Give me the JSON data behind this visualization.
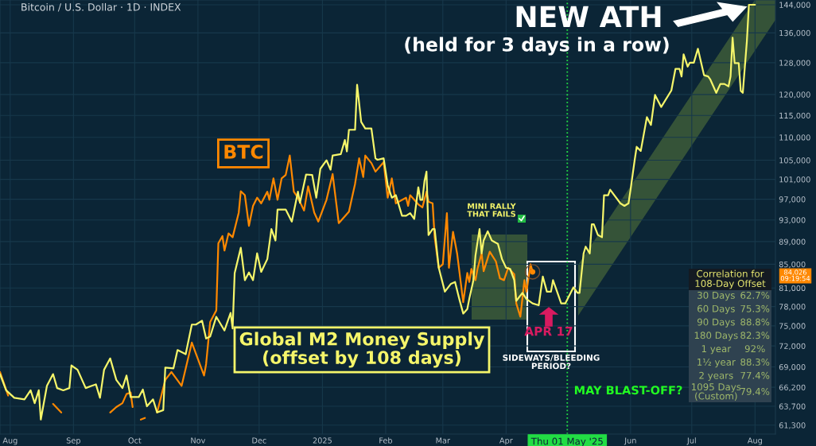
{
  "chart_data": [
    {
      "type": "line",
      "title": "Bitcoin / U.S. Dollar · 1D · INDEX",
      "log": "y",
      "grid": true,
      "xlim": [
        "2024-07-27",
        "2025-08-11"
      ],
      "xticks": [
        {
          "value": "2024-08-01",
          "label": "Aug"
        },
        {
          "value": "2024-09-01",
          "label": "Sep"
        },
        {
          "value": "2024-10-01",
          "label": "Oct"
        },
        {
          "value": "2024-11-01",
          "label": "Nov"
        },
        {
          "value": "2024-12-01",
          "label": "Dec"
        },
        {
          "value": "2025-01-01",
          "label": "2025"
        },
        {
          "value": "2025-02-01",
          "label": "Feb"
        },
        {
          "value": "2025-03-01",
          "label": "Mar"
        },
        {
          "value": "2025-04-01",
          "label": "Apr"
        },
        {
          "value": "2025-06-01",
          "label": "Jun"
        },
        {
          "value": "2025-07-01",
          "label": "Jul"
        },
        {
          "value": "2025-08-01",
          "label": "Aug"
        }
      ],
      "ylim": [
        60200,
        145400
      ],
      "yticks": [
        {
          "value": 61300,
          "label": "61,300"
        },
        {
          "value": 63700,
          "label": "63,700"
        },
        {
          "value": 66200,
          "label": "66,200"
        },
        {
          "value": 69000,
          "label": "69,000"
        },
        {
          "value": 72000,
          "label": "72,000"
        },
        {
          "value": 75000,
          "label": "75,000"
        },
        {
          "value": 78000,
          "label": "78,000"
        },
        {
          "value": 81000,
          "label": "81,000"
        },
        {
          "value": 85000,
          "label": "85,000"
        },
        {
          "value": 89000,
          "label": "89,000"
        },
        {
          "value": 93000,
          "label": "93,000"
        },
        {
          "value": 97000,
          "label": "97,000"
        },
        {
          "value": 101000,
          "label": "101,000"
        },
        {
          "value": 105000,
          "label": "105,000"
        },
        {
          "value": 110000,
          "label": "110,000"
        },
        {
          "value": 115000,
          "label": "115,000"
        },
        {
          "value": 120000,
          "label": "120,000"
        },
        {
          "value": 128000,
          "label": "128,000"
        },
        {
          "value": 136000,
          "label": "136,000"
        },
        {
          "value": 144000,
          "label": "144,000"
        }
      ],
      "ref_lines": [
        {
          "axis": "x",
          "value": "2025-05-01",
          "label": "Thu 01 May '25",
          "color": "#22dd44",
          "line_style": "dotted"
        }
      ],
      "series": [
        {
          "type": "line",
          "name": "BTC",
          "color": "#ff8800",
          "x": [
            "2024-07-27",
            "2024-07-31",
            "2024-08-02",
            "2024-08-22",
            "2024-08-26",
            "2024-08-27",
            "2024-09-18",
            "2024-09-19",
            "2024-09-22",
            "2024-09-25",
            "2024-09-27",
            "2024-09-29",
            "2024-09-30",
            "2024-10-01",
            "2024-10-04",
            "2024-10-06",
            "2024-10-09",
            "2024-10-12",
            "2024-10-16",
            "2024-10-19",
            "2024-10-24",
            "2024-10-29",
            "2024-11-04",
            "2024-11-05",
            "2024-11-07",
            "2024-11-10",
            "2024-11-11",
            "2024-11-13",
            "2024-11-14",
            "2024-11-16",
            "2024-11-18",
            "2024-11-21",
            "2024-11-22",
            "2024-11-24",
            "2024-11-26",
            "2024-11-28",
            "2024-11-30",
            "2024-12-02",
            "2024-12-05",
            "2024-12-06",
            "2024-12-08",
            "2024-12-10",
            "2024-12-12",
            "2024-12-14",
            "2024-12-16",
            "2024-12-18",
            "2024-12-20",
            "2024-12-23",
            "2024-12-25",
            "2024-12-28",
            "2024-12-30",
            "2025-01-03",
            "2025-01-06",
            "2025-01-09",
            "2025-01-14",
            "2025-01-17",
            "2025-01-19",
            "2025-01-21",
            "2025-01-22",
            "2025-01-25",
            "2025-01-27",
            "2025-01-31",
            "2025-02-02",
            "2025-02-04",
            "2025-02-06",
            "2025-02-11",
            "2025-02-12",
            "2025-02-13",
            "2025-02-15",
            "2025-02-17",
            "2025-02-19",
            "2025-02-21",
            "2025-02-22",
            "2025-02-24",
            "2025-02-25",
            "2025-02-27",
            "2025-03-01",
            "2025-03-03",
            "2025-03-04",
            "2025-03-06",
            "2025-03-08",
            "2025-03-11",
            "2025-03-13",
            "2025-03-14",
            "2025-03-15",
            "2025-03-17",
            "2025-03-18",
            "2025-03-20",
            "2025-03-21",
            "2025-03-24",
            "2025-03-27",
            "2025-03-29",
            "2025-03-31",
            "2025-04-02",
            "2025-04-05",
            "2025-04-06",
            "2025-04-08",
            "2025-04-10",
            "2025-04-11",
            "2025-04-13",
            "2025-04-14"
          ],
          "values": [
            68300,
            65100,
            null,
            64000,
            62900,
            null,
            null,
            62900,
            63600,
            64100,
            65300,
            65500,
            63600,
            null,
            62000,
            62200,
            null,
            62900,
            67200,
            68300,
            66400,
            72500,
            67800,
            69400,
            75600,
            77400,
            88700,
            90000,
            87400,
            90500,
            89800,
            94400,
            98600,
            97800,
            91900,
            95700,
            97300,
            96200,
            98500,
            96900,
            101200,
            96900,
            101200,
            101900,
            106000,
            98500,
            97300,
            94800,
            99600,
            94400,
            92700,
            96900,
            102100,
            92400,
            94600,
            100100,
            105400,
            101500,
            106000,
            104400,
            102600,
            104600,
            97300,
            101200,
            96200,
            97300,
            95700,
            97800,
            96900,
            96000,
            95400,
            98500,
            96500,
            96200,
            89800,
            84400,
            85000,
            94300,
            84400,
            90800,
            86900,
            78700,
            83500,
            82000,
            84200,
            82300,
            84200,
            86900,
            83800,
            87200,
            85500,
            82600,
            82300,
            84400,
            83300,
            78500,
            76400,
            82300,
            80400,
            85000,
            83700
          ]
        },
        {
          "type": "line",
          "name": "Global M2 Money Supply\n(offset by 108 days)",
          "color": "#f5f56a",
          "x": [
            "2024-07-27",
            "2024-07-30",
            "2024-08-03",
            "2024-08-08",
            "2024-08-11",
            "2024-08-13",
            "2024-08-15",
            "2024-08-16",
            "2024-08-19",
            "2024-08-22",
            "2024-08-24",
            "2024-08-27",
            "2024-08-30",
            "2024-08-31",
            "2024-09-03",
            "2024-09-07",
            "2024-09-10",
            "2024-09-12",
            "2024-09-14",
            "2024-09-16",
            "2024-09-19",
            "2024-09-22",
            "2024-09-25",
            "2024-09-27",
            "2024-09-29",
            "2024-10-03",
            "2024-10-05",
            "2024-10-07",
            "2024-10-10",
            "2024-10-12",
            "2024-10-15",
            "2024-10-16",
            "2024-10-20",
            "2024-10-22",
            "2024-10-26",
            "2024-10-29",
            "2024-10-31",
            "2024-11-03",
            "2024-11-05",
            "2024-11-07",
            "2024-11-10",
            "2024-11-14",
            "2024-11-17",
            "2024-11-18",
            "2024-11-19",
            "2024-11-22",
            "2024-11-24",
            "2024-11-26",
            "2024-11-28",
            "2024-11-30",
            "2024-12-02",
            "2024-12-05",
            "2024-12-07",
            "2024-12-09",
            "2024-12-10",
            "2024-12-14",
            "2024-12-17",
            "2024-12-20",
            "2024-12-21",
            "2024-12-24",
            "2024-12-27",
            "2024-12-29",
            "2024-12-31",
            "2025-01-03",
            "2025-01-05",
            "2025-01-06",
            "2025-01-10",
            "2025-01-12",
            "2025-01-13",
            "2025-01-14",
            "2025-01-17",
            "2025-01-18",
            "2025-01-20",
            "2025-01-22",
            "2025-01-25",
            "2025-01-27",
            "2025-01-28",
            "2025-01-31",
            "2025-02-02",
            "2025-02-04",
            "2025-02-06",
            "2025-02-09",
            "2025-02-11",
            "2025-02-13",
            "2025-02-15",
            "2025-02-17",
            "2025-02-18",
            "2025-02-19",
            "2025-02-20",
            "2025-02-21",
            "2025-02-22",
            "2025-02-24",
            "2025-02-25",
            "2025-02-27",
            "2025-03-02",
            "2025-03-05",
            "2025-03-07",
            "2025-03-09",
            "2025-03-11",
            "2025-03-13",
            "2025-03-14",
            "2025-03-16",
            "2025-03-17",
            "2025-03-19",
            "2025-03-20",
            "2025-03-21",
            "2025-03-23",
            "2025-03-25",
            "2025-03-28",
            "2025-03-30",
            "2025-04-01",
            "2025-04-03",
            "2025-04-05",
            "2025-04-06",
            "2025-04-09",
            "2025-04-11",
            "2025-04-14",
            "2025-04-17",
            "2025-04-19",
            "2025-04-21",
            "2025-04-23",
            "2025-04-24",
            "2025-04-26",
            "2025-04-28",
            "2025-04-30",
            "2025-05-04",
            "2025-05-06",
            "2025-05-07",
            "2025-05-09",
            "2025-05-10",
            "2025-05-12",
            "2025-05-13",
            "2025-05-14",
            "2025-05-16",
            "2025-05-18",
            "2025-05-19",
            "2025-05-21",
            "2025-05-22",
            "2025-05-27",
            "2025-05-29",
            "2025-05-31",
            "2025-06-01",
            "2025-06-03",
            "2025-06-04",
            "2025-06-06",
            "2025-06-09",
            "2025-06-11",
            "2025-06-13",
            "2025-06-16",
            "2025-06-21",
            "2025-06-23",
            "2025-06-25",
            "2025-06-26",
            "2025-06-27",
            "2025-06-29",
            "2025-06-30",
            "2025-07-02",
            "2025-07-04",
            "2025-07-07",
            "2025-07-09",
            "2025-07-10",
            "2025-07-13",
            "2025-07-15",
            "2025-07-17",
            "2025-07-19",
            "2025-07-20",
            "2025-07-21",
            "2025-07-22",
            "2025-07-24",
            "2025-07-25",
            "2025-07-26",
            "2025-07-28",
            "2025-07-29",
            "2025-08-01"
          ],
          "values": [
            68000,
            65800,
            64800,
            64600,
            65800,
            64100,
            65800,
            62000,
            66400,
            68000,
            66100,
            65800,
            66100,
            69200,
            68600,
            66100,
            66400,
            66600,
            64800,
            68600,
            70200,
            67200,
            66100,
            67800,
            64900,
            64900,
            65900,
            63700,
            64600,
            62900,
            63200,
            68900,
            68800,
            71400,
            70800,
            75200,
            75200,
            75800,
            73100,
            73400,
            76400,
            74300,
            77000,
            74600,
            83500,
            87900,
            82300,
            83600,
            82300,
            86900,
            83700,
            85900,
            91300,
            89200,
            95000,
            95000,
            92700,
            98500,
            96300,
            102000,
            101900,
            97300,
            103200,
            105000,
            103000,
            106000,
            106300,
            109400,
            106900,
            111700,
            111700,
            122400,
            113500,
            112000,
            112000,
            105400,
            105100,
            105400,
            99800,
            97300,
            97800,
            93800,
            93800,
            94300,
            93200,
            99400,
            96900,
            96900,
            100600,
            102600,
            90200,
            91300,
            91300,
            84400,
            80400,
            81700,
            82000,
            79300,
            76900,
            77600,
            79300,
            82300,
            86500,
            91300,
            86900,
            89200,
            90900,
            89200,
            88600,
            85900,
            84400,
            84200,
            82300,
            78900,
            80200,
            79200,
            78500,
            78200,
            82900,
            80400,
            80400,
            82300,
            80400,
            78500,
            78500,
            81100,
            80200,
            80200,
            86900,
            88100,
            86900,
            92200,
            92200,
            90200,
            89800,
            97800,
            97800,
            98900,
            96200,
            95700,
            96200,
            98900,
            105000,
            107900,
            107000,
            114600,
            112800,
            119900,
            117000,
            121000,
            126400,
            126400,
            124500,
            130200,
            127000,
            128000,
            128000,
            131700,
            124800,
            124500,
            123800,
            120400,
            122600,
            122600,
            122000,
            124500,
            134700,
            127900,
            127900,
            120900,
            120400,
            133700,
            144000,
            144000
          ]
        }
      ],
      "annotations": [
        "NEW ATH",
        "(held for 3 days in a row)",
        "MINI RALLY\nTHAT FAILS",
        "APR 17",
        "SIDEWAYS/BLEEDING\nPERIOD?",
        "MAY BLAST-OFF?",
        "84,026\n09:19:54"
      ]
    },
    {
      "type": "other",
      "title": "Correlation for\n108-Day Offset",
      "categories": [
        "30 Days",
        "60 Days",
        "90 Days",
        "180 Days",
        "1 year",
        "1½ year",
        "2 years",
        "1095 Days\n(Custom)"
      ],
      "value_labels": [
        "62.7%",
        "75.3%",
        "88.8%",
        "82.3%",
        "92%",
        "88.3%",
        "77.4%",
        "79.4%"
      ]
    }
  ]
}
